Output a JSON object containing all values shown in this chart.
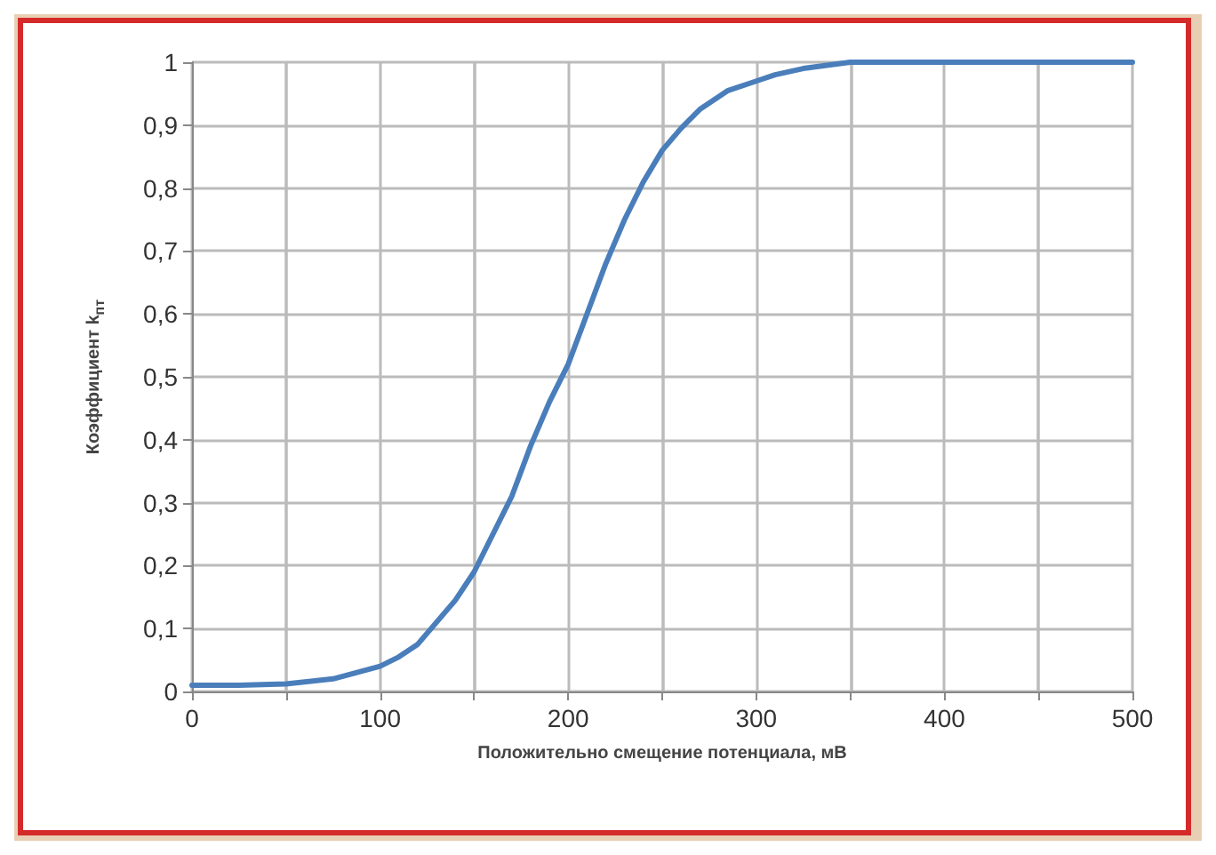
{
  "chart_data": {
    "type": "line",
    "xlabel": "Положительно смещение потенциала, мВ",
    "ylabel": "Коэффициент k$_{пт}$",
    "x": [
      0,
      25,
      50,
      75,
      100,
      110,
      120,
      130,
      140,
      150,
      160,
      170,
      180,
      190,
      200,
      210,
      220,
      230,
      240,
      250,
      260,
      270,
      285,
      300,
      310,
      325,
      350,
      400,
      450,
      500
    ],
    "series": [
      {
        "color": "#4a7ebb",
        "values": [
          0.01,
          0.01,
          0.012,
          0.02,
          0.04,
          0.055,
          0.075,
          0.11,
          0.145,
          0.19,
          0.25,
          0.31,
          0.39,
          0.46,
          0.52,
          0.6,
          0.68,
          0.75,
          0.81,
          0.86,
          0.895,
          0.925,
          0.955,
          0.97,
          0.98,
          0.99,
          1,
          1,
          1,
          1
        ]
      }
    ],
    "xlim": [
      0,
      500
    ],
    "xticks": [
      0,
      100,
      200,
      300,
      400,
      500
    ],
    "ylim": [
      0,
      1
    ],
    "yticks": [
      0,
      {
        "value": 0.1,
        "label": "0,1"
      },
      {
        "value": 0.2,
        "label": "0,2"
      },
      {
        "value": 0.3,
        "label": "0,3"
      },
      {
        "value": 0.4,
        "label": "0,4"
      },
      {
        "value": 0.5,
        "label": "0,5"
      },
      {
        "value": 0.6,
        "label": "0,6"
      },
      {
        "value": 0.7,
        "label": "0,7"
      },
      {
        "value": 0.8,
        "label": "0,8"
      },
      {
        "value": 0.9,
        "label": "0,9"
      },
      1
    ],
    "grid": true,
    "marker": "none",
    "line_style": "solid"
  }
}
